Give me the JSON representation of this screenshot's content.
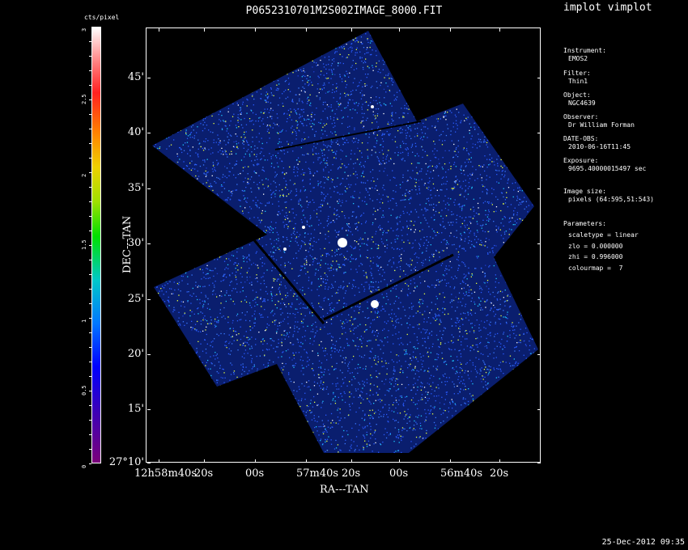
{
  "title": "P0652310701M2S002IMAGE_8000.FIT",
  "tool_name": "implot vimplot",
  "colorbar": {
    "unit": "cts/pixel",
    "labels": [
      "0",
      "0.5",
      "1",
      "1.5",
      "2",
      "2.5",
      "3"
    ]
  },
  "axes": {
    "ylabel": "DEC---TAN",
    "xlabel": "RA---TAN",
    "y_ticks": [
      "45'",
      "40'",
      "35'",
      "30'",
      "25'",
      "20'",
      "15'",
      "27°10'"
    ],
    "x_ticks": [
      "12h58m40s",
      "20s",
      "00s",
      "57m40s",
      "20s",
      "00s",
      "56m40s",
      "20s"
    ]
  },
  "info": {
    "instrument_label": "Instrument:",
    "instrument": "EMOS2",
    "filter_label": "Filter:",
    "filter": "Thin1",
    "object_label": "Object:",
    "object": "NGC4639",
    "observer_label": "Observer:",
    "observer": "Dr William Forman",
    "date_obs_label": "DATE-OBS:",
    "date_obs": "2010-06-16T11:45",
    "exposure_label": "Exposure:",
    "exposure": "9695.40000015497 sec",
    "image_size_label": "Image size:",
    "image_size": "pixels (64:595,51:543)",
    "parameters_label": "Parameters:",
    "scaletype": "scaletype = linear",
    "zlo": "zlo = 0.000000",
    "zhi": "zhi = 0.996000",
    "colourmap": "colourmap =  7"
  },
  "timestamp": "25-Dec-2012 09:35",
  "colors": {
    "background": "#000000",
    "foreground": "#ffffff",
    "noise": "#2a5cff",
    "speckle": "#e8ff40"
  }
}
